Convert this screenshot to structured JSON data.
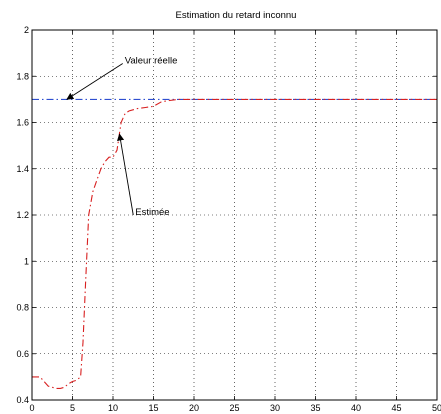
{
  "chart_data": {
    "type": "line",
    "title": "Estimation du retard inconnu",
    "xlabel": "",
    "ylabel": "",
    "xlim": [
      0,
      50
    ],
    "ylim": [
      0.4,
      2
    ],
    "grid": true,
    "x_ticks": [
      0,
      5,
      10,
      15,
      20,
      25,
      30,
      35,
      40,
      45,
      50
    ],
    "y_ticks": [
      0.4,
      0.6,
      0.8,
      1,
      1.2,
      1.4,
      1.6,
      1.8,
      2
    ],
    "x_tick_labels": [
      "0",
      "5",
      "10",
      "15",
      "20",
      "25",
      "30",
      "35",
      "40",
      "45",
      "50"
    ],
    "y_tick_labels": [
      "0.4",
      "0.6",
      "0.8",
      "1",
      "1.2",
      "1.4",
      "1.6",
      "1.8",
      "2"
    ],
    "series": [
      {
        "color": "#2f4fd0",
        "style": "dash-dot",
        "x": [
          0,
          50
        ],
        "y": [
          1.7,
          1.7
        ]
      },
      {
        "color": "#d82020",
        "style": "dash-dot",
        "x": [
          0,
          0.5,
          1,
          1.5,
          2,
          2.5,
          3,
          3.5,
          4,
          4.5,
          5,
          5.5,
          6,
          6.3,
          6.6,
          7,
          7.5,
          8,
          8.5,
          9,
          9.5,
          10,
          10.5,
          11,
          11.5,
          12,
          13,
          14,
          15,
          16,
          17,
          18,
          19,
          20,
          25,
          30,
          35,
          40,
          45,
          50
        ],
        "y": [
          0.5,
          0.5,
          0.5,
          0.48,
          0.46,
          0.455,
          0.45,
          0.45,
          0.455,
          0.47,
          0.48,
          0.485,
          0.5,
          0.65,
          0.9,
          1.2,
          1.3,
          1.35,
          1.4,
          1.43,
          1.45,
          1.45,
          1.48,
          1.6,
          1.64,
          1.65,
          1.66,
          1.665,
          1.67,
          1.69,
          1.695,
          1.7,
          1.7,
          1.7,
          1.7,
          1.7,
          1.7,
          1.7,
          1.7,
          1.7
        ]
      }
    ],
    "annotations": [
      {
        "text": "Valeur réelle",
        "target_x": 4.3,
        "target_y": 1.7,
        "label_x": 11.2,
        "label_y": 1.855
      },
      {
        "text": "Estimée",
        "target_x": 10.8,
        "target_y": 1.55,
        "label_x": 12.5,
        "label_y": 1.2
      }
    ],
    "colors": {
      "axes": "#000000",
      "grid": "#000000",
      "background": "#ffffff"
    }
  }
}
